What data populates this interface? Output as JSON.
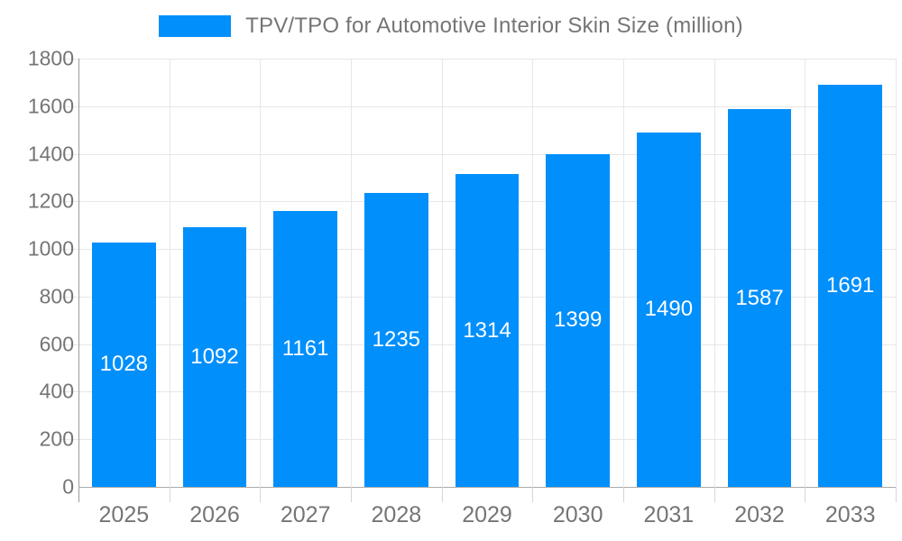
{
  "chart_data": {
    "type": "bar",
    "title": "TPV/TPO for Automotive Interior Skin Size (million)",
    "series": [
      {
        "name": "TPV/TPO for Automotive Interior Skin Size (million)",
        "values": [
          1028,
          1092,
          1161,
          1235,
          1314,
          1399,
          1490,
          1587,
          1691
        ]
      }
    ],
    "categories": [
      "2025",
      "2026",
      "2027",
      "2028",
      "2029",
      "2030",
      "2031",
      "2032",
      "2033"
    ],
    "xlabel": "",
    "ylabel": "",
    "ylim": [
      0,
      1800
    ],
    "y_ticks": [
      0,
      200,
      400,
      600,
      800,
      1000,
      1200,
      1400,
      1600,
      1800
    ],
    "grid": true,
    "legend_position": "top",
    "data_labels": "inside-center-white",
    "colors": {
      "bar": "#008FFB",
      "value_label": "#ffffff",
      "axis_text": "#757575",
      "gridline": "#e7e7e7",
      "axis_line": "#9b9b9b",
      "background": "#ffffff"
    }
  }
}
